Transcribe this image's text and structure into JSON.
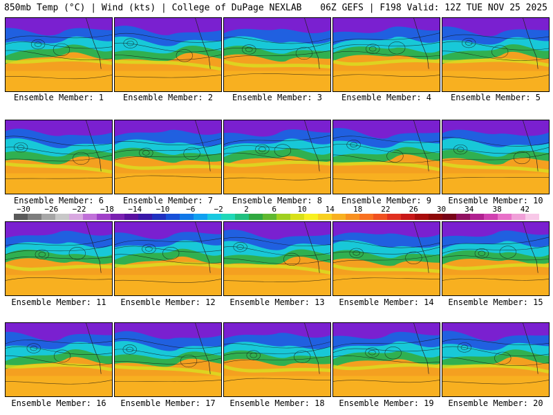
{
  "header": {
    "left": "850mb Temp (°C) | Wind (kts) | College of DuPage NEXLAB",
    "right": "06Z GEFS | F198 Valid: 12Z TUE NOV 25 2025"
  },
  "members": [
    "Ensemble Member: 1",
    "Ensemble Member: 2",
    "Ensemble Member: 3",
    "Ensemble Member: 4",
    "Ensemble Member: 5",
    "Ensemble Member: 6",
    "Ensemble Member: 7",
    "Ensemble Member: 8",
    "Ensemble Member: 9",
    "Ensemble Member: 10",
    "Ensemble Member: 11",
    "Ensemble Member: 12",
    "Ensemble Member: 13",
    "Ensemble Member: 14",
    "Ensemble Member: 15",
    "Ensemble Member: 16",
    "Ensemble Member: 17",
    "Ensemble Member: 18",
    "Ensemble Member: 19",
    "Ensemble Member: 20"
  ],
  "colorbar": {
    "ticks": [
      "−30",
      "−26",
      "−22",
      "−18",
      "−14",
      "−10",
      "−6",
      "−2",
      "2",
      "6",
      "10",
      "14",
      "18",
      "22",
      "26",
      "30",
      "34",
      "38",
      "42"
    ],
    "colors": [
      "#5a5a5a",
      "#7d7d7d",
      "#a6a6a6",
      "#c8c8c8",
      "#d8a8e0",
      "#c070d8",
      "#a040c8",
      "#7a20b0",
      "#5a10a0",
      "#3818a8",
      "#2030c0",
      "#1850d8",
      "#1078e8",
      "#10a0f0",
      "#18c8e0",
      "#20d8b8",
      "#20c080",
      "#30a840",
      "#60b830",
      "#a0d020",
      "#d8e018",
      "#f8f020",
      "#f8d020",
      "#f8b020",
      "#f89020",
      "#f87020",
      "#f05020",
      "#e03020",
      "#c81818",
      "#a80c0c",
      "#8c0808",
      "#780418",
      "#901060",
      "#b02090",
      "#d040b0",
      "#e870c8",
      "#f0a0d8",
      "#f8c8e8"
    ]
  },
  "colors": {
    "cold": "#7a20d0",
    "cool": "#2060e0",
    "mid": "#18c8d8",
    "mild": "#30b050",
    "warm": "#f8b820"
  }
}
